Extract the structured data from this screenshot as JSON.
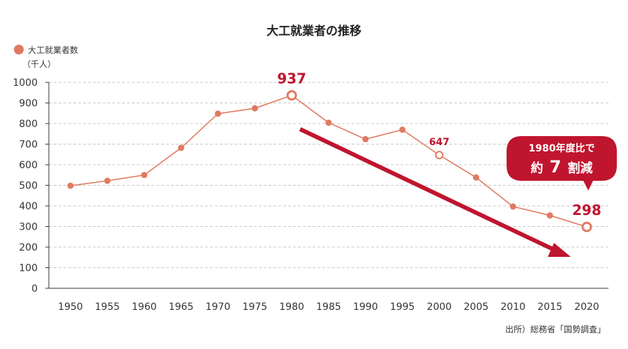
{
  "colors": {
    "series": "#e07a61",
    "accent": "#c0152f",
    "grid": "#c8c8c8",
    "axis": "#333333"
  },
  "chart_data": {
    "type": "line",
    "title": "大工就業者の推移",
    "legend": {
      "label": "大工就業者数",
      "unit": "（千人）"
    },
    "x": [
      "1950",
      "1955",
      "1960",
      "1965",
      "1970",
      "1975",
      "1980",
      "1985",
      "1990",
      "1995",
      "2000",
      "2005",
      "2010",
      "2015",
      "2020"
    ],
    "series": [
      {
        "name": "大工就業者数",
        "values": [
          498,
          522,
          550,
          682,
          848,
          874,
          937,
          804,
          724,
          770,
          647,
          538,
          397,
          354,
          298
        ]
      }
    ],
    "ylim": [
      0,
      1000
    ],
    "yticks": [
      0,
      100,
      200,
      300,
      400,
      500,
      600,
      700,
      800,
      900,
      1000
    ],
    "grid": true,
    "legend_position": "top-left",
    "highlighted": [
      {
        "x": "1980",
        "label": "937"
      },
      {
        "x": "2000",
        "label": "647"
      },
      {
        "x": "2020",
        "label": "298"
      }
    ],
    "callout": {
      "line1": "1980年度比で",
      "prefix": "約",
      "number": "7",
      "suffix": "割減"
    },
    "source": "出所）総務省「国勢調査」"
  }
}
